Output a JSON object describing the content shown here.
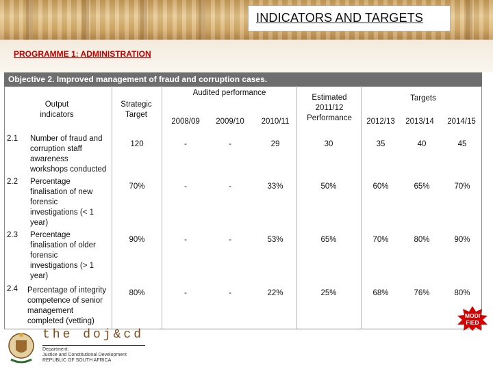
{
  "header": {
    "title": "INDICATORS AND TARGETS"
  },
  "programme": "PROGRAMME 1: ADMINISTRATION",
  "objective": "Objective 2. Improved management of fraud and corruption cases.",
  "table": {
    "headers": {
      "output_indicators": "Output indicators",
      "strategic_target": "Strategic Target",
      "audited_performance": "Audited performance",
      "estimated": "Estimated 2011/12 Performance",
      "targets": "Targets",
      "years_audited": [
        "2008/09",
        "2009/10",
        "2010/11"
      ],
      "years_targets": [
        "2012/13",
        "2013/14",
        "2014/15"
      ]
    },
    "rows": [
      {
        "num": "2.1",
        "indicator": [
          "Number of fraud and",
          "corruption staff",
          "awareness",
          "workshops conducted"
        ],
        "strategic": "120",
        "audited": [
          "-",
          "-",
          "29"
        ],
        "estimated": "30",
        "targets": [
          "35",
          "40",
          "45"
        ]
      },
      {
        "num": "2.2",
        "indicator": [
          "Percentage",
          "finalisation of new",
          "forensic",
          "investigations (< 1",
          "year)"
        ],
        "strategic": "70%",
        "audited": [
          "-",
          "-",
          "33%"
        ],
        "estimated": "50%",
        "targets": [
          "60%",
          "65%",
          "70%"
        ]
      },
      {
        "num": "2.3",
        "indicator": [
          "Percentage",
          "finalisation of older",
          "forensic",
          "investigations (> 1",
          "year)"
        ],
        "strategic": "90%",
        "audited": [
          "-",
          "-",
          "53%"
        ],
        "estimated": "65%",
        "targets": [
          "70%",
          "80%",
          "90%"
        ]
      },
      {
        "num": "2.4",
        "indicator": [
          "Percentage of integrity",
          "competence of senior",
          "management",
          "completed (vetting)"
        ],
        "strategic": "80%",
        "audited": [
          "-",
          "-",
          "22%"
        ],
        "estimated": "25%",
        "targets": [
          "68%",
          "76%",
          "80%"
        ]
      }
    ]
  },
  "footer": {
    "brand": "the doj&cd",
    "dept_lines": [
      "Department:",
      "Justice and Constitutional Development",
      "REPUBLIC OF SOUTH AFRICA"
    ]
  },
  "badge": {
    "line1": "MODI",
    "line2": "FIED"
  },
  "colors": {
    "title_accent": "#c00000",
    "objective_bg": "#6e6e6e",
    "badge": "#d40000"
  }
}
